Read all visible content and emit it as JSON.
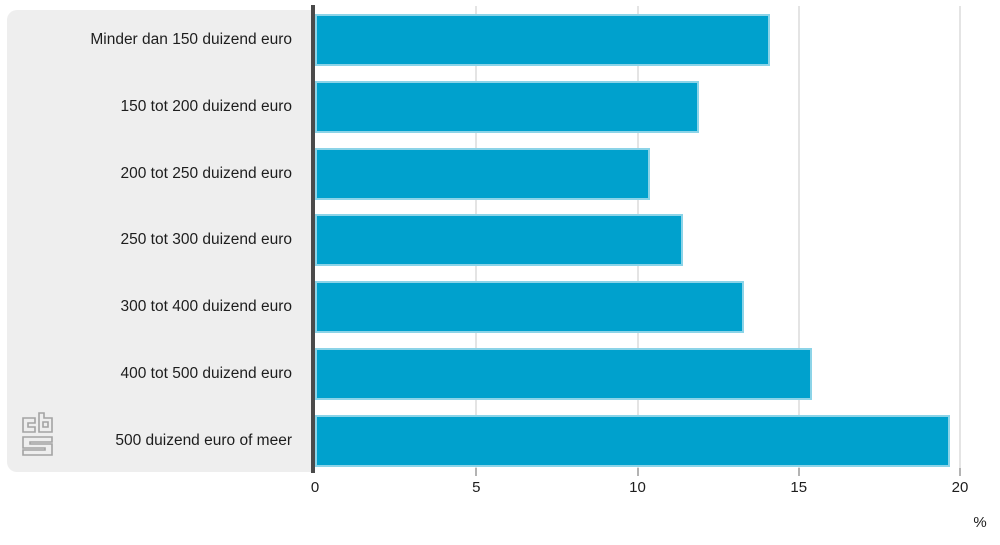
{
  "chart_data": {
    "type": "bar",
    "orientation": "horizontal",
    "title": "",
    "xlabel": "%",
    "ylabel": "",
    "categories": [
      "Minder dan 150 duizend euro",
      "150 tot 200 duizend euro",
      "200 tot 250 duizend euro",
      "250 tot 300 duizend euro",
      "300 tot 400 duizend euro",
      "400 tot 500 duizend euro",
      "500 duizend euro of meer"
    ],
    "values": [
      14.1,
      11.9,
      10.4,
      11.4,
      13.3,
      15.4,
      19.7
    ],
    "xlim": [
      0,
      20
    ],
    "x_ticks": [
      "0",
      "5",
      "10",
      "15",
      "20"
    ],
    "x_tick_values": [
      0,
      5,
      10,
      15,
      20
    ],
    "grid": true,
    "legend": "none",
    "unit": "%"
  },
  "colors": {
    "bar": "#00a1cd",
    "panel": "#eeeeee",
    "axis": "#4a4a4a",
    "gridline": "#e4e4e4",
    "text": "#1d1d1d",
    "logo": "#a3a3a3"
  },
  "logo": {
    "name": "cbs-logo"
  }
}
